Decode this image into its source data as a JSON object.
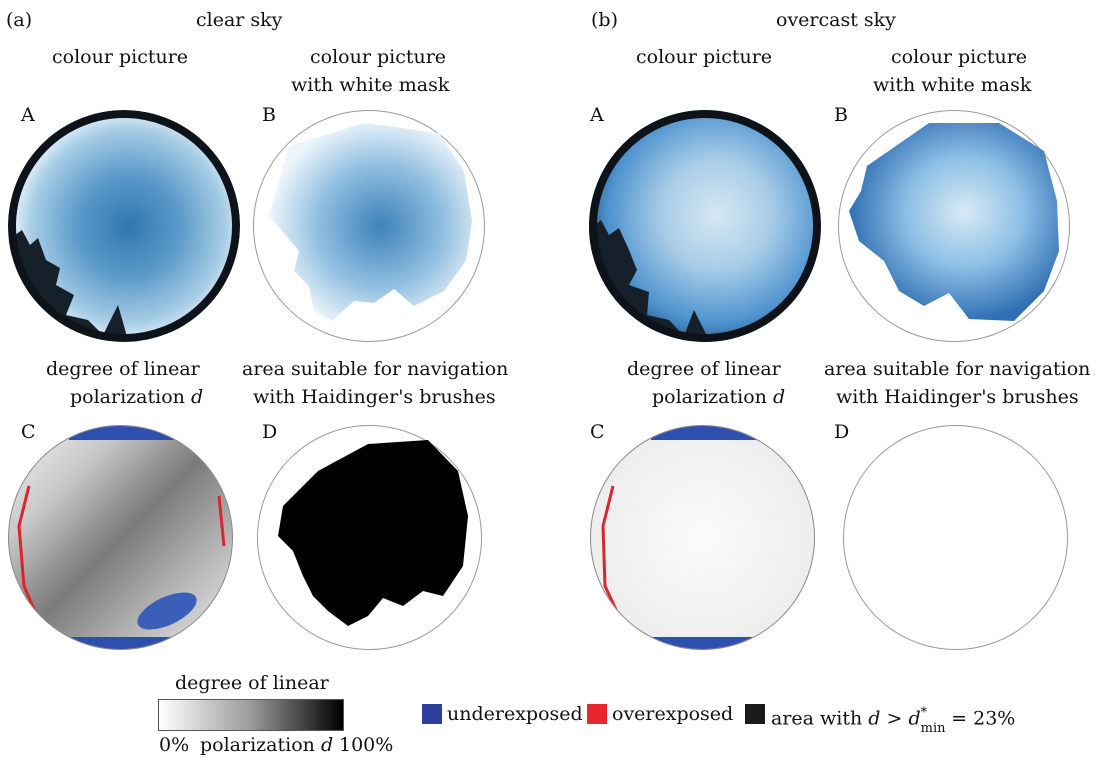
{
  "figure": {
    "col_a": {
      "tag": "(a)",
      "title": "clear sky"
    },
    "col_b": {
      "tag": "(b)",
      "title": "overcast sky"
    },
    "headers": {
      "colour": "colour picture",
      "mask_line1": "colour picture",
      "mask_line2": "with white mask",
      "dop_line1": "degree of linear",
      "dop_line2": "polarization",
      "dop_var": "d",
      "nav_line1": "area suitable for navigation",
      "nav_line2": "with Haidinger's brushes"
    },
    "letters": {
      "A": "A",
      "B": "B",
      "C": "C",
      "D": "D"
    }
  },
  "colorbar": {
    "title": "degree of linear",
    "left_label": "0%",
    "mid_label": "polarization",
    "mid_var": "d",
    "right_label": "100%"
  },
  "legend": {
    "underexposed": "underexposed",
    "overexposed": "overexposed",
    "area_prefix": "area with",
    "area_var": "d",
    "area_cmp": ">",
    "area_dmin": "d",
    "area_dmin_sup": "*",
    "area_dmin_sub": "min",
    "area_value": "= 23%"
  },
  "colors": {
    "underexposed": "#2f3f9e",
    "overexposed": "#e8242f",
    "area": "#1a1a1a"
  }
}
